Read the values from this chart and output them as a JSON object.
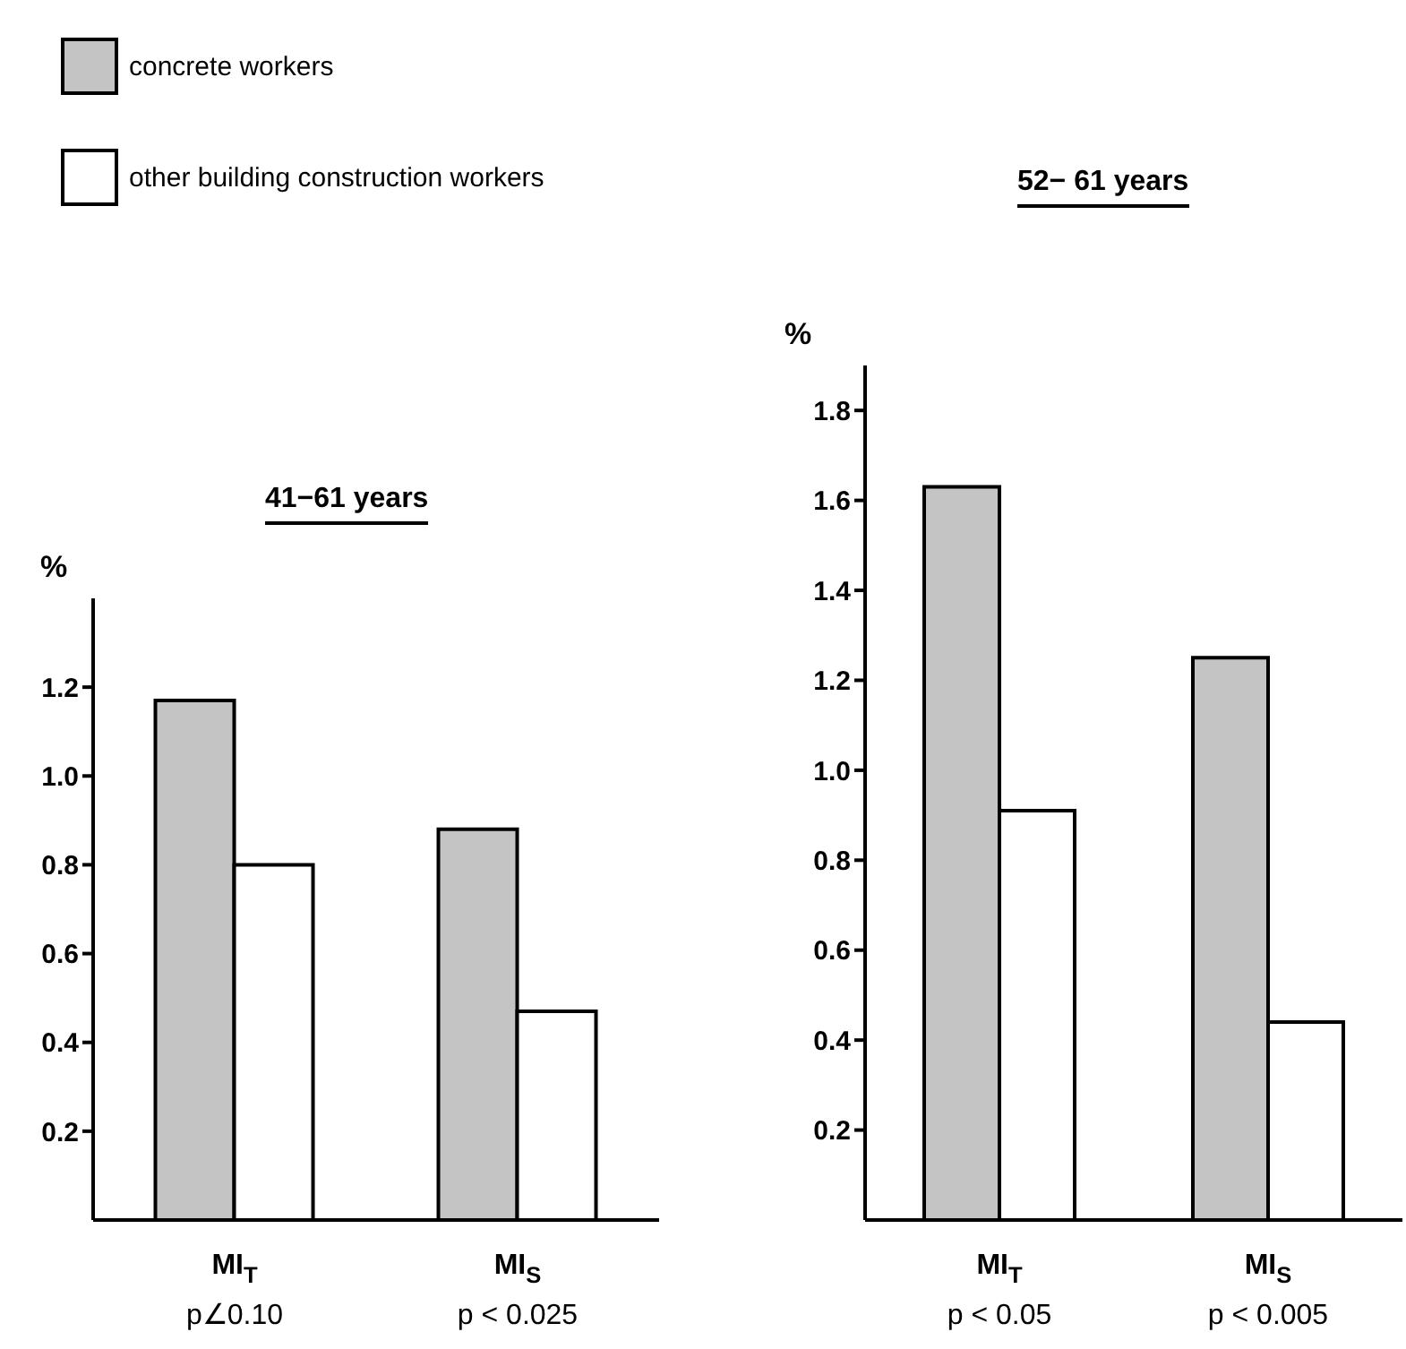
{
  "chart_data": [
    {
      "type": "bar",
      "title": "41−61 years",
      "ylabel": "%",
      "categories": [
        "MI$_{T}$",
        "MI$_{S}$"
      ],
      "series": [
        {
          "name": "concrete workers",
          "color": "#c4c4c4",
          "values": [
            1.17,
            0.88
          ]
        },
        {
          "name": "other building construction workers",
          "color": "#ffffff",
          "values": [
            0.8,
            0.47
          ]
        }
      ],
      "ylim": [
        0,
        1.4
      ],
      "yticks": [
        0.2,
        0.4,
        0.6,
        0.8,
        {
          "value": 1,
          "label": "1.0"
        },
        1.2
      ],
      "grid": false,
      "legend": "top left",
      "annotations": [
        "p∠0.10",
        "p < 0.025"
      ]
    },
    {
      "type": "bar",
      "title": "52− 61 years",
      "ylabel": "%",
      "categories": [
        "MI$_{T}$",
        "MI$_{S}$"
      ],
      "series": [
        {
          "color": "#c4c4c4",
          "values": [
            1.63,
            1.25
          ]
        },
        {
          "color": "#ffffff",
          "values": [
            0.91,
            0.44
          ]
        }
      ],
      "ylim": [
        0,
        1.9
      ],
      "yticks": [
        0.2,
        0.4,
        0.6,
        0.8,
        {
          "value": 1,
          "label": "1.0"
        },
        1.2,
        1.4,
        1.6,
        1.8
      ],
      "grid": false,
      "legend": false,
      "annotations": [
        "p < 0.05",
        "p < 0.005"
      ]
    }
  ]
}
